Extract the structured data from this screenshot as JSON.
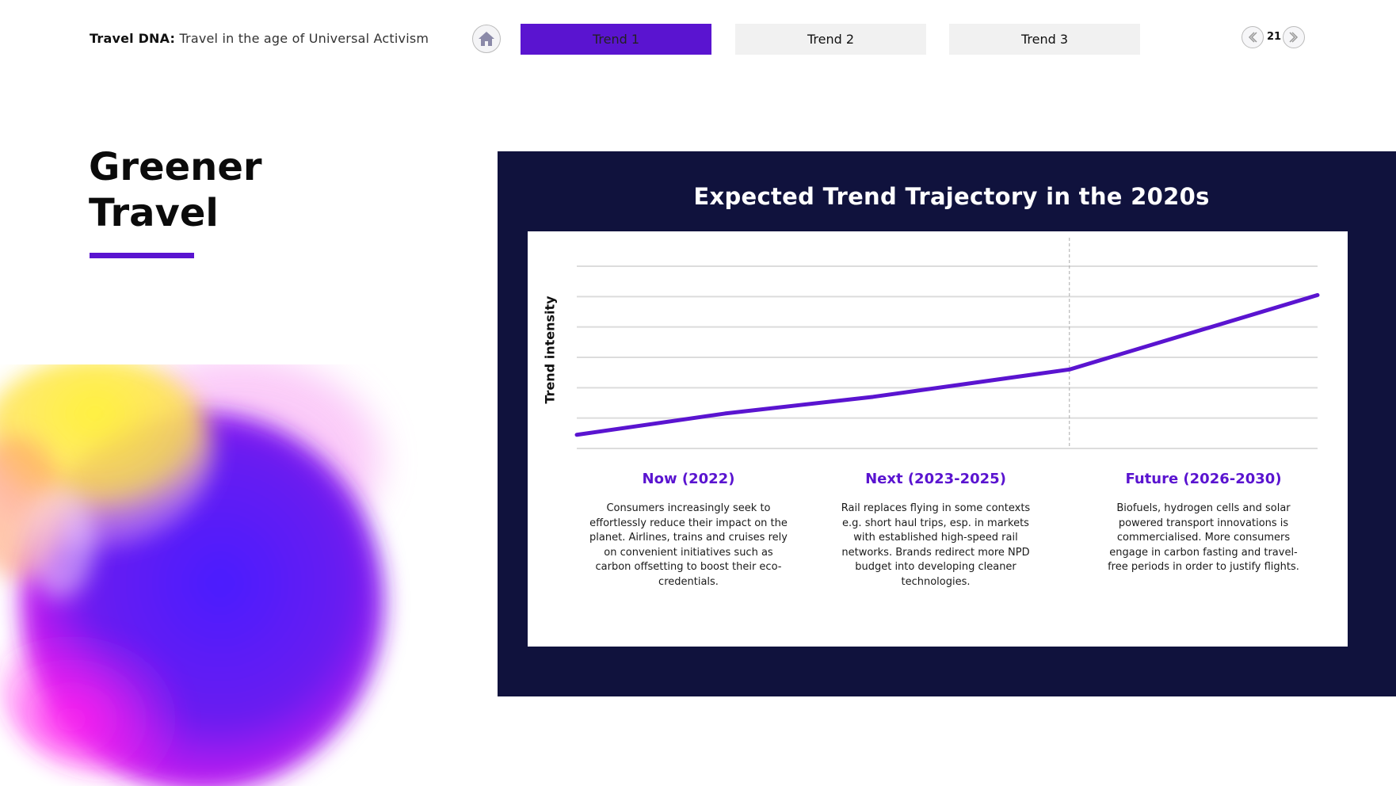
{
  "header": {
    "title_strong": "Travel DNA:",
    "title_light": "Travel in the age of Universal Activism",
    "home_icon": "home-icon",
    "tabs": [
      {
        "label": "Trend 1",
        "active": true
      },
      {
        "label": "Trend 2",
        "active": false
      },
      {
        "label": "Trend 3",
        "active": false
      }
    ],
    "page_number": "21",
    "prev_icon": "chevron-left-icon",
    "next_icon": "chevron-right-icon"
  },
  "section": {
    "title": "Greener\nTravel"
  },
  "colors": {
    "accent": "#5a14d0",
    "panel_bg": "#10123d",
    "gridline": "#dcdcdc"
  },
  "chart_data": {
    "type": "line",
    "title": "Expected Trend Trajectory in the 2020s",
    "ylabel": "Trend intensity",
    "xlabel": "",
    "grid": true,
    "ylim": [
      0,
      6
    ],
    "xlim": [
      0,
      1
    ],
    "series": [
      {
        "x": [
          0,
          0.2,
          0.4,
          0.665,
          1.0
        ],
        "values": [
          0.45,
          1.15,
          1.7,
          2.6,
          5.05
        ]
      }
    ],
    "divider_x": 0.665,
    "phases": [
      {
        "title": "Now (2022)",
        "text": "Consumers increasingly seek to effortlessly reduce their impact on the planet. Airlines, trains and cruises rely on convenient initiatives such as carbon offsetting to boost their eco-credentials."
      },
      {
        "title": "Next (2023-2025)",
        "text": "Rail replaces flying in some contexts e.g. short haul trips, esp. in markets with established high-speed rail networks. Brands redirect more NPD budget into developing cleaner technologies."
      },
      {
        "title": "Future (2026-2030)",
        "text": "Biofuels, hydrogen cells and solar powered transport innovations is commercialised. More consumers engage in carbon fasting and travel-free periods in order to justify flights."
      }
    ]
  }
}
